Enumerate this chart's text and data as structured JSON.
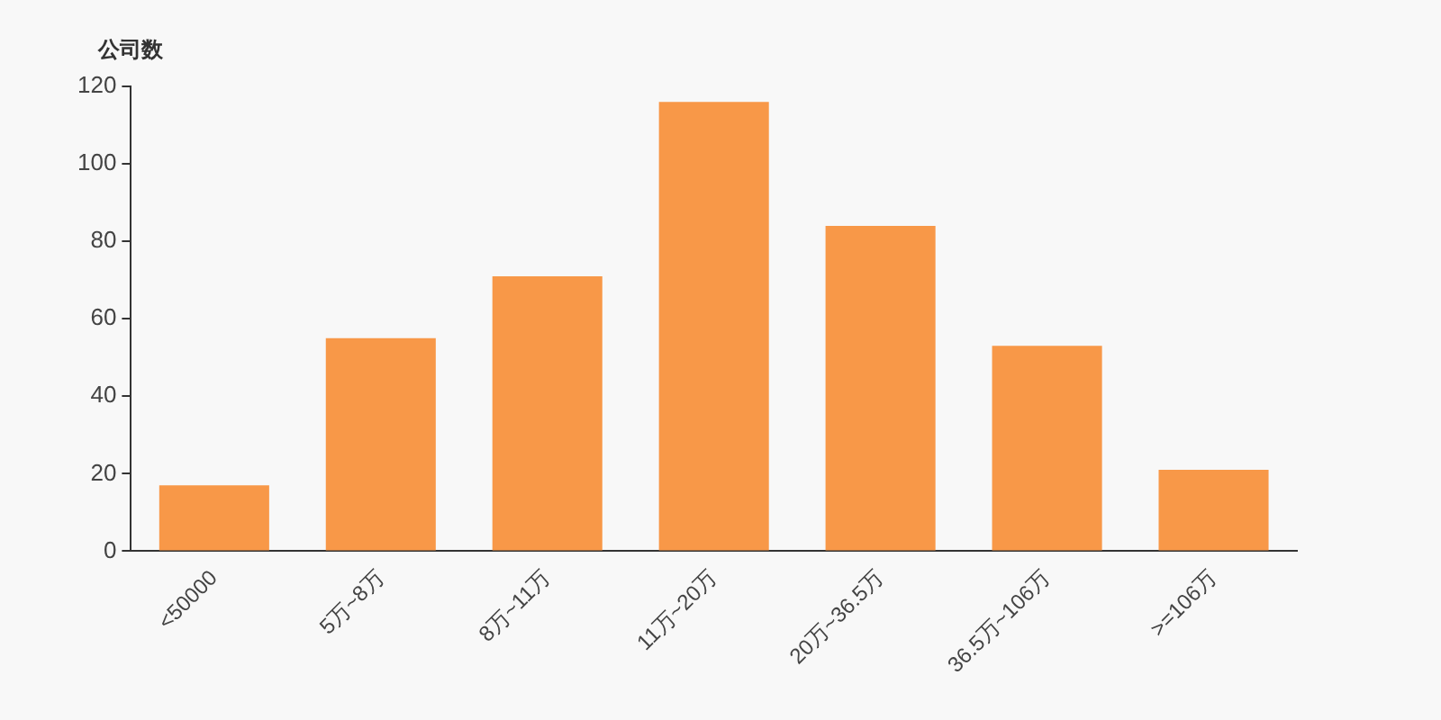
{
  "chart_data": {
    "type": "bar",
    "ylabel": "公司数",
    "categories": [
      "<50000",
      "5万~8万",
      "8万~11万",
      "11万~20万",
      "20万~36.5万",
      "36.5万~106万",
      ">=106万"
    ],
    "values": [
      17,
      55,
      71,
      116,
      84,
      53,
      21
    ],
    "color": "#f89848",
    "ylim": [
      0,
      120
    ],
    "yticks": [
      0,
      20,
      40,
      60,
      80,
      100,
      120
    ],
    "grid": false,
    "legend": false
  }
}
